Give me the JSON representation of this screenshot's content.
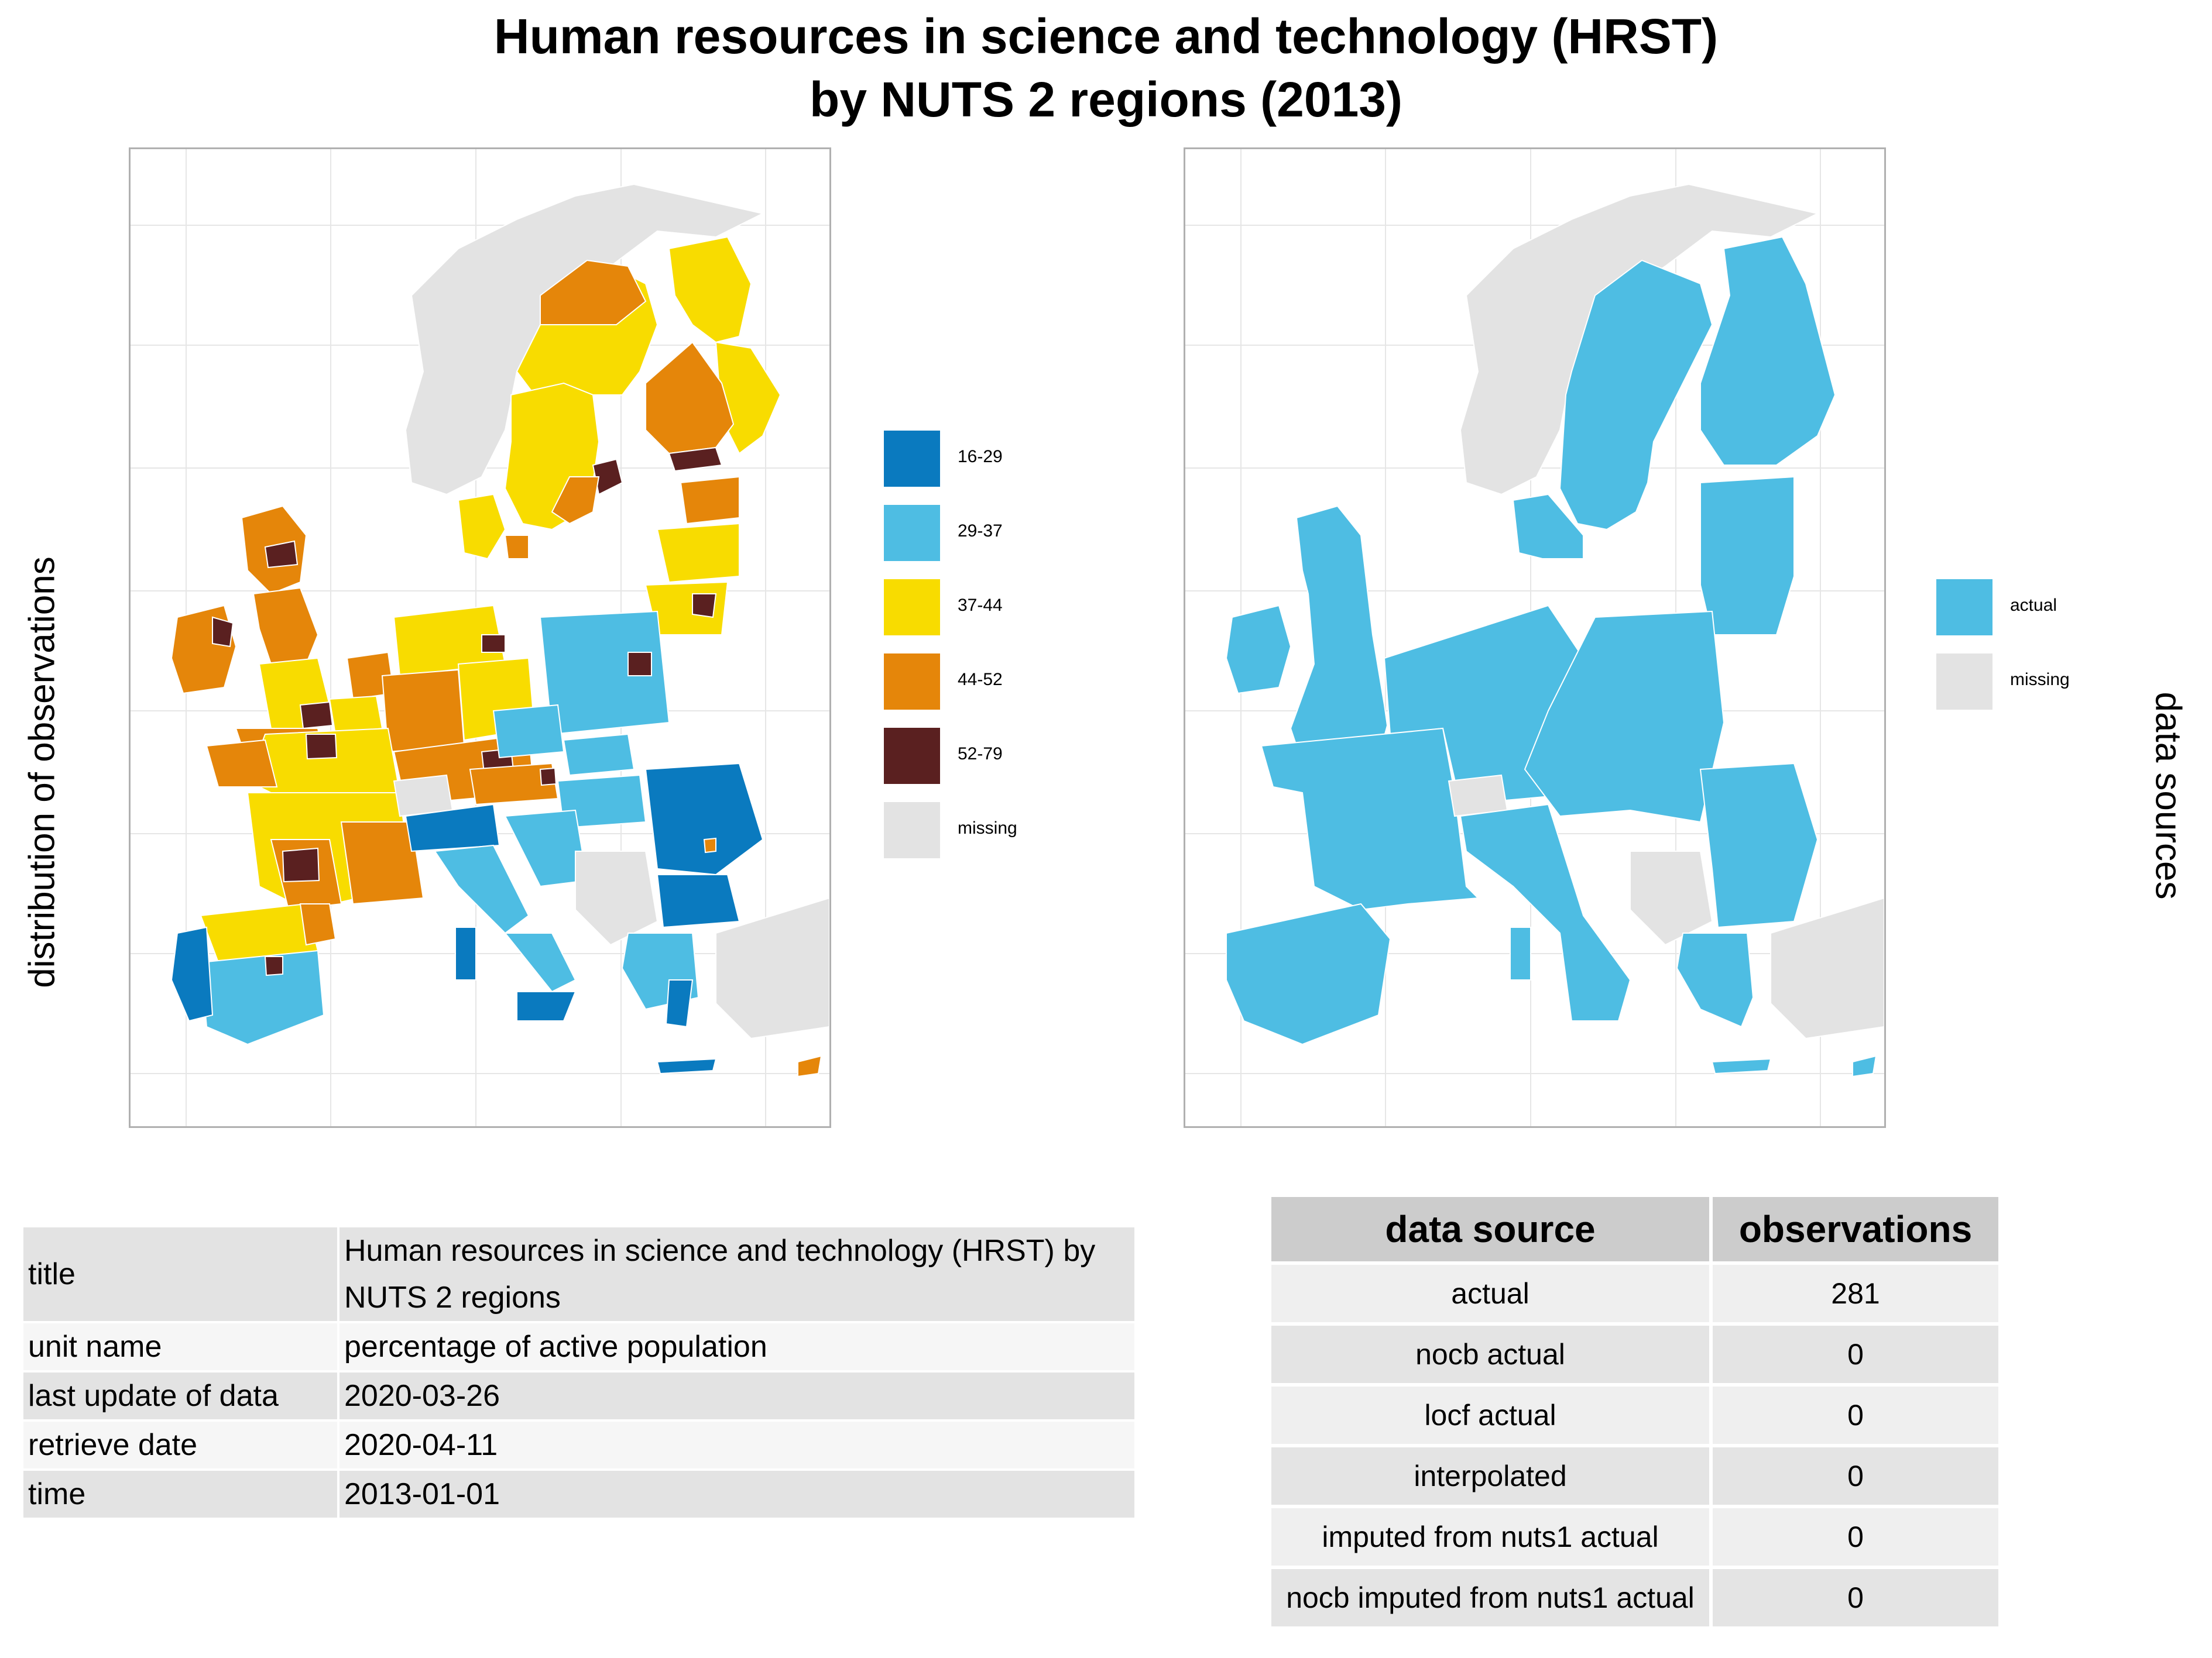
{
  "title": {
    "line1": "Human resources in science and technology (HRST)",
    "line2": "by NUTS 2 regions (2013)"
  },
  "left_map": {
    "side_label": "distribution of observations",
    "legend": [
      {
        "label": "16-29",
        "color": "#0a7abf"
      },
      {
        "label": "29-37",
        "color": "#4ebde3"
      },
      {
        "label": "37-44",
        "color": "#f8dc00"
      },
      {
        "label": "44-52",
        "color": "#e5860a"
      },
      {
        "label": "52-79",
        "color": "#5a2020"
      },
      {
        "label": "missing",
        "color": "#e3e3e3"
      }
    ]
  },
  "right_map": {
    "side_label": "data sources",
    "legend": [
      {
        "label": "actual",
        "color": "#4ebde3"
      },
      {
        "label": "missing",
        "color": "#e3e3e3"
      }
    ]
  },
  "metadata_table": [
    {
      "key": "title",
      "value": "Human resources in science and technology (HRST) by NUTS 2 regions"
    },
    {
      "key": "unit name",
      "value": "percentage of active population"
    },
    {
      "key": "last update of data",
      "value": "2020-03-26"
    },
    {
      "key": "retrieve date",
      "value": "2020-04-11"
    },
    {
      "key": "time",
      "value": "2013-01-01"
    }
  ],
  "source_table": {
    "headers": [
      "data source",
      "observations"
    ],
    "rows": [
      [
        "actual",
        "281"
      ],
      [
        "nocb actual",
        "0"
      ],
      [
        "locf actual",
        "0"
      ],
      [
        "interpolated",
        "0"
      ],
      [
        "imputed from nuts1 actual",
        "0"
      ],
      [
        "nocb imputed from nuts1 actual",
        "0"
      ]
    ]
  }
}
